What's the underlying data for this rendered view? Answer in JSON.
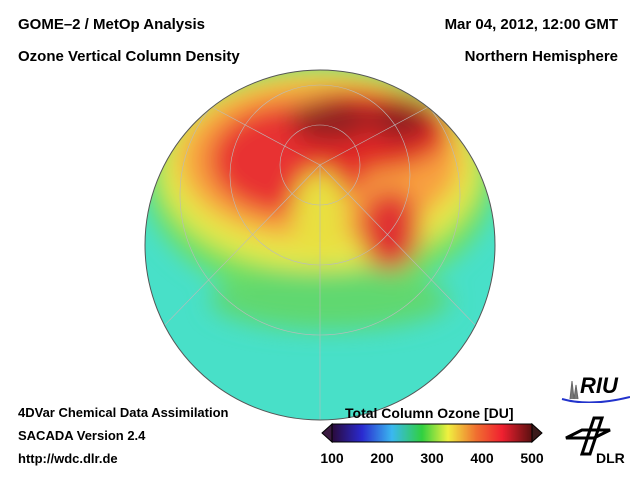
{
  "header": {
    "title_left_1": "GOME–2 / MetOp Analysis",
    "title_left_2": "Ozone Vertical Column Density",
    "date": "Mar 04, 2012, 12:00 GMT",
    "region": "Northern Hemisphere"
  },
  "footer": {
    "line1": "4DVar Chemical Data Assimilation",
    "line2": "SACADA Version 2.4",
    "url": "http://wdc.dlr.de"
  },
  "colorbar": {
    "title": "Total Column Ozone [DU]",
    "ticks": [
      "100",
      "200",
      "300",
      "400",
      "500"
    ],
    "range": [
      100,
      500
    ],
    "colors": [
      "#2a0a3a",
      "#2a2ad0",
      "#3aa0f0",
      "#40e0e0",
      "#30d040",
      "#f0f040",
      "#f07030",
      "#f02030",
      "#5a1010"
    ]
  },
  "logos": {
    "riu": "RIU",
    "dlr": "DLR"
  }
}
